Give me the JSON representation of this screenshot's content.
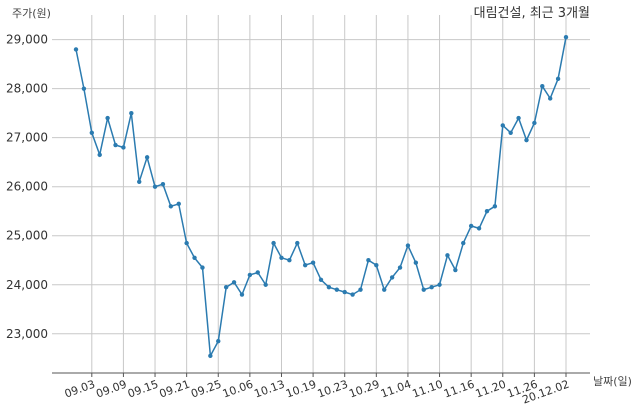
{
  "chart_data": {
    "type": "line",
    "title": "대림건설, 최근 3개월",
    "ylabel": "주가(원)",
    "xlabel": "날짜(일)",
    "ylim": [
      22200,
      29400
    ],
    "yticks": [
      23000,
      24000,
      25000,
      26000,
      27000,
      28000,
      29000
    ],
    "ytick_labels": [
      "23,000",
      "24,000",
      "25,000",
      "26,000",
      "27,000",
      "28,000",
      "29,000"
    ],
    "xtick_labels": [
      "09.03",
      "09.09",
      "09.15",
      "09.21",
      "09.25",
      "10.06",
      "10.13",
      "10.19",
      "10.23",
      "10.29",
      "11.04",
      "11.10",
      "11.16",
      "11.20",
      "11.26",
      "20.12.02"
    ],
    "xtick_index": [
      2,
      6,
      10,
      14,
      18,
      22,
      26,
      30,
      34,
      38,
      42,
      46,
      50,
      54,
      58,
      62
    ],
    "grid": true,
    "line_color": "#2b7bb0",
    "series": [
      {
        "values": [
          28800,
          28000,
          27100,
          26650,
          27400,
          26850,
          26800,
          27500,
          26100,
          26600,
          26000,
          26050,
          25600,
          25650,
          24850,
          24550,
          24350,
          22550,
          22850,
          23950,
          24050,
          23800,
          24200,
          24250,
          24000,
          24850,
          24550,
          24500,
          24850,
          24400,
          24450,
          24100,
          23950,
          23900,
          23850,
          23800,
          23900,
          24500,
          24400,
          23900,
          24150,
          24350,
          24800,
          24450,
          23900,
          23950,
          24000,
          24600,
          24300,
          24850,
          25200,
          25150,
          25500,
          25600,
          27250,
          27100,
          27400,
          26950,
          27300,
          28050,
          27800,
          28200,
          29050
        ]
      }
    ]
  }
}
